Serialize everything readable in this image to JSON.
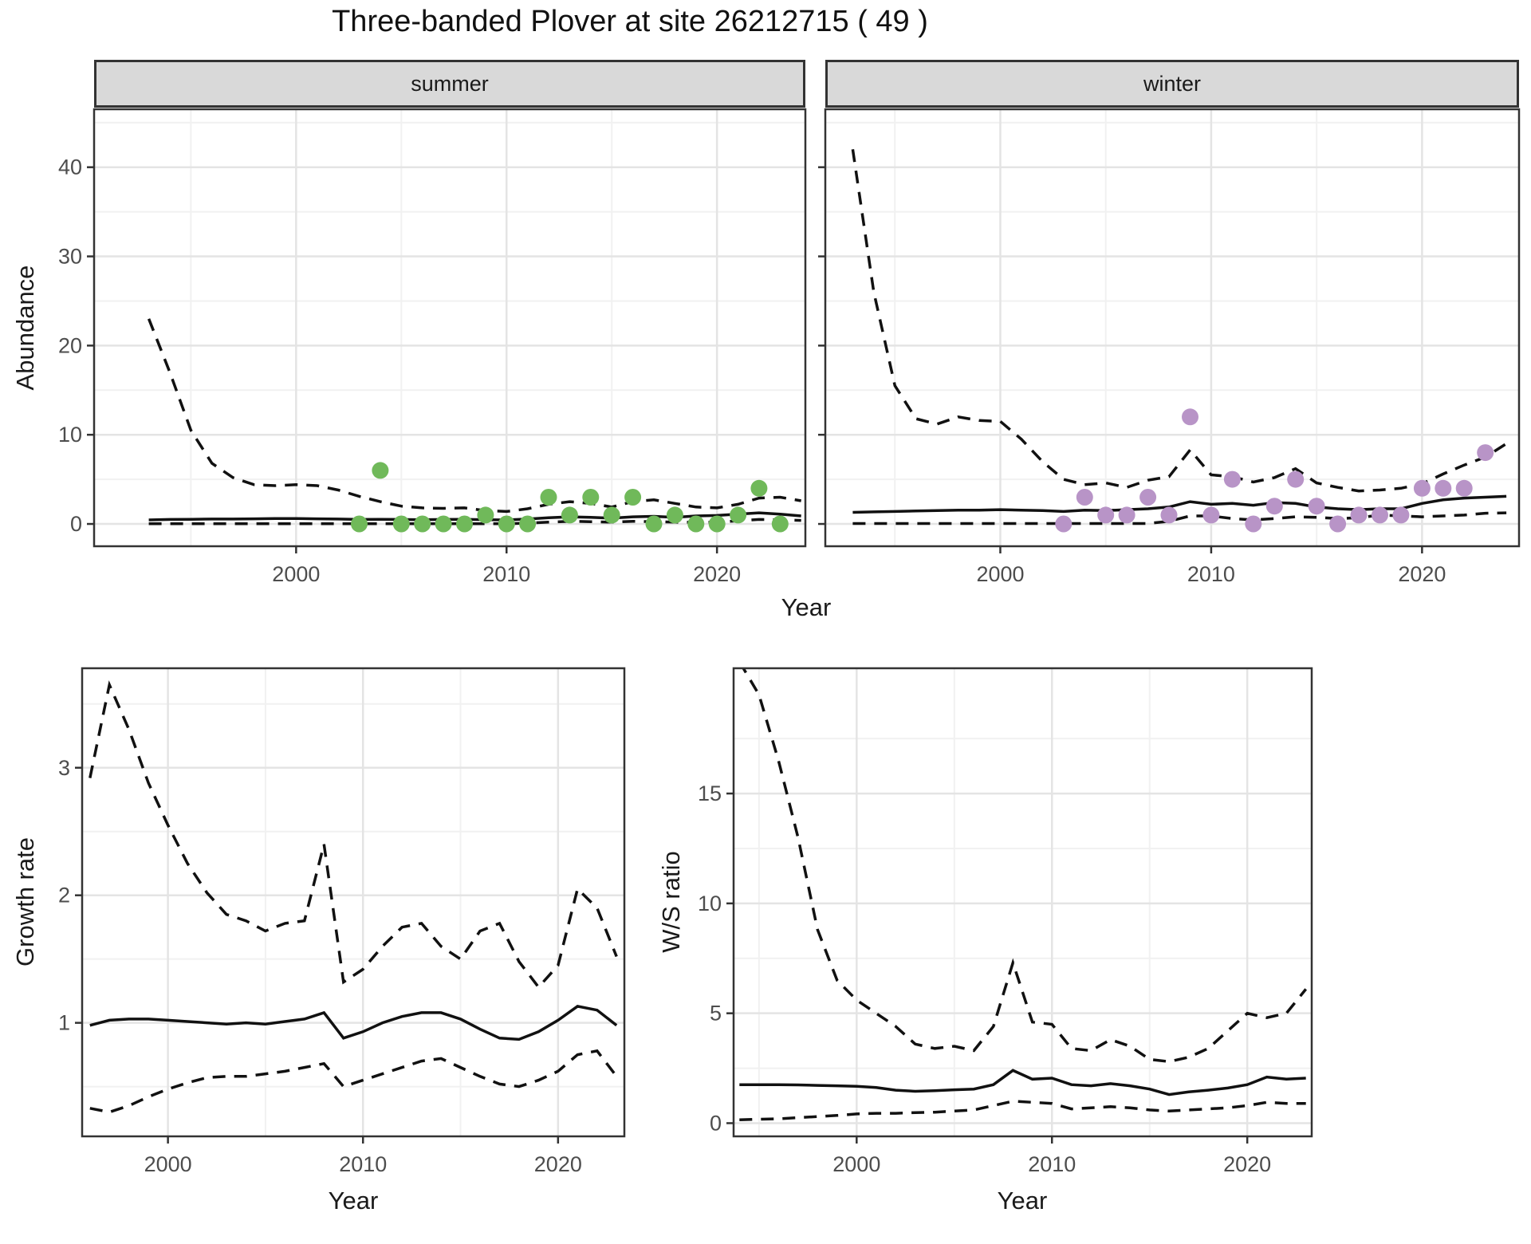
{
  "title": "Three-banded Plover at site 26212715 ( 49 )",
  "axis_titles": {
    "abundance": "Abundance",
    "year": "Year",
    "growth_rate": "Growth rate",
    "ws_ratio": "W/S ratio"
  },
  "colors": {
    "summer_points": "#70b95a",
    "winter_points": "#b894c7",
    "model_line": "#111111",
    "strip_background": "#d9d9d9",
    "panel_border": "#333333",
    "grid_major": "#e4e4e4",
    "grid_minor": "#f1f1f1",
    "tick_text": "#4d4d4d"
  },
  "chart_data": [
    {
      "id": "abundance-summer",
      "type": "line+scatter",
      "title_strip": "summer",
      "xlabel": "Year",
      "ylabel": "Abundance",
      "xlim": [
        1990.4,
        2024.2
      ],
      "ylim": [
        -2.5,
        46.5
      ],
      "x_ticks": [
        2000,
        2010,
        2020
      ],
      "x_minor": [
        1995,
        2005,
        2015
      ],
      "y_ticks": [
        0,
        10,
        20,
        30,
        40
      ],
      "y_minor": [
        5,
        15,
        25,
        35,
        45
      ],
      "series": [
        {
          "name": "upper-ci",
          "style": "dashed",
          "x": [
            1993,
            1994,
            1995,
            1996,
            1997,
            1998,
            1999,
            2000,
            2001,
            2002,
            2003,
            2004,
            2005,
            2006,
            2007,
            2008,
            2009,
            2010,
            2011,
            2012,
            2013,
            2014,
            2015,
            2016,
            2017,
            2018,
            2019,
            2020,
            2021,
            2022,
            2023,
            2024
          ],
          "y": [
            23,
            17,
            10.5,
            6.8,
            5.2,
            4.4,
            4.3,
            4.4,
            4.3,
            3.8,
            3.1,
            2.5,
            2.0,
            1.8,
            1.75,
            1.8,
            1.5,
            1.4,
            1.7,
            2.2,
            2.5,
            2.3,
            1.9,
            2.5,
            2.7,
            2.3,
            1.9,
            1.8,
            2.2,
            2.9,
            3.0,
            2.6
          ]
        },
        {
          "name": "mean",
          "style": "solid",
          "x": [
            1993,
            1994,
            1995,
            1996,
            1997,
            1998,
            1999,
            2000,
            2001,
            2002,
            2003,
            2004,
            2005,
            2006,
            2007,
            2008,
            2009,
            2010,
            2011,
            2012,
            2013,
            2014,
            2015,
            2016,
            2017,
            2018,
            2019,
            2020,
            2021,
            2022,
            2023,
            2024
          ],
          "y": [
            0.45,
            0.5,
            0.52,
            0.55,
            0.55,
            0.58,
            0.6,
            0.6,
            0.58,
            0.55,
            0.5,
            0.52,
            0.5,
            0.48,
            0.5,
            0.52,
            0.48,
            0.45,
            0.55,
            0.7,
            0.8,
            0.75,
            0.65,
            0.8,
            0.85,
            0.75,
            0.9,
            0.95,
            1.1,
            1.25,
            1.1,
            0.9
          ]
        },
        {
          "name": "lower-ci",
          "style": "dashed",
          "x": [
            1993,
            1994,
            1995,
            1996,
            1997,
            1998,
            1999,
            2000,
            2001,
            2002,
            2003,
            2004,
            2005,
            2006,
            2007,
            2008,
            2009,
            2010,
            2011,
            2012,
            2013,
            2014,
            2015,
            2016,
            2017,
            2018,
            2019,
            2020,
            2021,
            2022,
            2023,
            2024
          ],
          "y": [
            0.02,
            0.02,
            0.02,
            0.02,
            0.02,
            0.02,
            0.02,
            0.02,
            0.02,
            0.02,
            0.02,
            0.02,
            0.02,
            0.02,
            0.02,
            0.02,
            0.02,
            0.02,
            0.1,
            0.2,
            0.3,
            0.25,
            0.2,
            0.3,
            0.25,
            0.2,
            0.18,
            0.2,
            0.35,
            0.5,
            0.45,
            0.4
          ]
        }
      ],
      "points": {
        "name": "observed-summer-counts",
        "color": "#70b95a",
        "x": [
          2003,
          2004,
          2005,
          2006,
          2007,
          2008,
          2009,
          2010,
          2011,
          2012,
          2013,
          2014,
          2015,
          2016,
          2017,
          2018,
          2019,
          2020,
          2021,
          2022,
          2023
        ],
        "y": [
          0,
          6,
          0,
          0,
          0,
          0,
          1,
          0,
          0,
          3,
          1,
          3,
          1,
          3,
          0,
          1,
          0,
          0,
          1,
          4,
          0
        ]
      }
    },
    {
      "id": "abundance-winter",
      "type": "line+scatter",
      "title_strip": "winter",
      "xlabel": "Year",
      "ylabel": "Abundance",
      "xlim": [
        1991.7,
        2024.6
      ],
      "ylim": [
        -2.5,
        46.5
      ],
      "x_ticks": [
        2000,
        2010,
        2020
      ],
      "x_minor": [
        1995,
        2005,
        2015
      ],
      "y_ticks": [
        0,
        10,
        20,
        30,
        40
      ],
      "y_minor": [
        5,
        15,
        25,
        35,
        45
      ],
      "series": [
        {
          "name": "upper-ci",
          "style": "dashed",
          "x": [
            1993,
            1994,
            1995,
            1996,
            1997,
            1998,
            1999,
            2000,
            2001,
            2002,
            2003,
            2004,
            2005,
            2006,
            2007,
            2008,
            2009,
            2010,
            2011,
            2012,
            2013,
            2014,
            2015,
            2016,
            2017,
            2018,
            2019,
            2020,
            2021,
            2022,
            2023,
            2024
          ],
          "y": [
            42,
            26,
            15.5,
            11.8,
            11.2,
            12.0,
            11.6,
            11.5,
            9.5,
            7.0,
            5.0,
            4.4,
            4.6,
            4.1,
            4.9,
            5.3,
            8.3,
            5.5,
            5.3,
            4.7,
            5.2,
            6.2,
            4.6,
            4.1,
            3.7,
            3.8,
            4.0,
            4.5,
            5.6,
            6.6,
            7.5,
            9.0
          ]
        },
        {
          "name": "mean",
          "style": "solid",
          "x": [
            1993,
            1994,
            1995,
            1996,
            1997,
            1998,
            1999,
            2000,
            2001,
            2002,
            2003,
            2004,
            2005,
            2006,
            2007,
            2008,
            2009,
            2010,
            2011,
            2012,
            2013,
            2014,
            2015,
            2016,
            2017,
            2018,
            2019,
            2020,
            2021,
            2022,
            2023,
            2024
          ],
          "y": [
            1.3,
            1.35,
            1.4,
            1.45,
            1.5,
            1.55,
            1.55,
            1.6,
            1.55,
            1.5,
            1.4,
            1.55,
            1.5,
            1.6,
            1.7,
            1.9,
            2.5,
            2.2,
            2.3,
            2.1,
            2.4,
            2.3,
            1.9,
            1.7,
            1.6,
            1.7,
            1.7,
            2.3,
            2.7,
            2.9,
            3.0,
            3.1
          ]
        },
        {
          "name": "lower-ci",
          "style": "dashed",
          "x": [
            1993,
            1994,
            1995,
            1996,
            1997,
            1998,
            1999,
            2000,
            2001,
            2002,
            2003,
            2004,
            2005,
            2006,
            2007,
            2008,
            2009,
            2010,
            2011,
            2012,
            2013,
            2014,
            2015,
            2016,
            2017,
            2018,
            2019,
            2020,
            2021,
            2022,
            2023,
            2024
          ],
          "y": [
            0.05,
            0.05,
            0.05,
            0.05,
            0.05,
            0.05,
            0.05,
            0.05,
            0.05,
            0.05,
            0.05,
            0.05,
            0.05,
            0.05,
            0.05,
            0.3,
            0.9,
            0.9,
            0.6,
            0.45,
            0.6,
            0.8,
            0.75,
            0.6,
            0.7,
            1.0,
            0.9,
            0.8,
            0.9,
            1.0,
            1.2,
            1.25
          ]
        }
      ],
      "points": {
        "name": "observed-winter-counts",
        "color": "#b894c7",
        "x": [
          2003,
          2004,
          2005,
          2006,
          2007,
          2008,
          2009,
          2010,
          2011,
          2012,
          2013,
          2014,
          2015,
          2016,
          2017,
          2018,
          2019,
          2020,
          2021,
          2022,
          2023
        ],
        "y": [
          0,
          3,
          1,
          1,
          3,
          1,
          12,
          1,
          5,
          0,
          2,
          5,
          2,
          0,
          1,
          1,
          1,
          4,
          4,
          4,
          8
        ]
      }
    },
    {
      "id": "growth-rate",
      "type": "line",
      "title_strip": null,
      "xlabel": "Year",
      "ylabel": "Growth rate",
      "xlim": [
        1995.6,
        2023.4
      ],
      "ylim": [
        0.11,
        3.78
      ],
      "x_ticks": [
        2000,
        2010,
        2020
      ],
      "x_minor": [
        2005,
        2015
      ],
      "y_ticks": [
        1,
        2,
        3
      ],
      "y_minor": [
        0.5,
        1.5,
        2.5,
        3.5
      ],
      "series": [
        {
          "name": "upper-ci",
          "style": "dashed",
          "x": [
            1996,
            1997,
            1998,
            1999,
            2000,
            2001,
            2002,
            2003,
            2004,
            2005,
            2006,
            2007,
            2008,
            2009,
            2010,
            2011,
            2012,
            2013,
            2014,
            2015,
            2016,
            2017,
            2018,
            2019,
            2020,
            2021,
            2022,
            2023
          ],
          "y": [
            2.92,
            3.65,
            3.3,
            2.88,
            2.55,
            2.25,
            2.02,
            1.85,
            1.8,
            1.72,
            1.78,
            1.8,
            2.4,
            1.32,
            1.42,
            1.6,
            1.75,
            1.78,
            1.6,
            1.5,
            1.72,
            1.78,
            1.48,
            1.28,
            1.45,
            2.05,
            1.9,
            1.52
          ]
        },
        {
          "name": "mean",
          "style": "solid",
          "x": [
            1996,
            1997,
            1998,
            1999,
            2000,
            2001,
            2002,
            2003,
            2004,
            2005,
            2006,
            2007,
            2008,
            2009,
            2010,
            2011,
            2012,
            2013,
            2014,
            2015,
            2016,
            2017,
            2018,
            2019,
            2020,
            2021,
            2022,
            2023
          ],
          "y": [
            0.98,
            1.02,
            1.03,
            1.03,
            1.02,
            1.01,
            1.0,
            0.99,
            1.0,
            0.99,
            1.01,
            1.03,
            1.08,
            0.88,
            0.93,
            1.0,
            1.05,
            1.08,
            1.08,
            1.03,
            0.95,
            0.88,
            0.87,
            0.93,
            1.02,
            1.13,
            1.1,
            0.98
          ]
        },
        {
          "name": "lower-ci",
          "style": "dashed",
          "x": [
            1996,
            1997,
            1998,
            1999,
            2000,
            2001,
            2002,
            2003,
            2004,
            2005,
            2006,
            2007,
            2008,
            2009,
            2010,
            2011,
            2012,
            2013,
            2014,
            2015,
            2016,
            2017,
            2018,
            2019,
            2020,
            2021,
            2022,
            2023
          ],
          "y": [
            0.33,
            0.3,
            0.35,
            0.42,
            0.48,
            0.53,
            0.57,
            0.58,
            0.58,
            0.6,
            0.62,
            0.65,
            0.68,
            0.5,
            0.55,
            0.6,
            0.65,
            0.7,
            0.72,
            0.65,
            0.58,
            0.52,
            0.5,
            0.55,
            0.62,
            0.75,
            0.78,
            0.58
          ]
        }
      ],
      "points": null
    },
    {
      "id": "ws-ratio",
      "type": "line",
      "title_strip": null,
      "xlabel": "Year",
      "ylabel": "W/S ratio",
      "xlim": [
        1993.7,
        2023.3
      ],
      "ylim": [
        -0.6,
        20.7
      ],
      "x_ticks": [
        2000,
        2010,
        2020
      ],
      "x_minor": [
        1995,
        2005,
        2015
      ],
      "y_ticks": [
        0,
        5,
        10,
        15
      ],
      "y_minor": [
        2.5,
        7.5,
        12.5,
        17.5
      ],
      "series": [
        {
          "name": "upper-ci",
          "style": "dashed",
          "x": [
            1994,
            1995,
            1996,
            1997,
            1998,
            1999,
            2000,
            2001,
            2002,
            2003,
            2004,
            2005,
            2006,
            2007,
            2008,
            2009,
            2010,
            2011,
            2012,
            2013,
            2014,
            2015,
            2016,
            2017,
            2018,
            2019,
            2020,
            2021,
            2022,
            2023
          ],
          "y": [
            21,
            19.5,
            16.5,
            13.0,
            8.8,
            6.5,
            5.6,
            5.0,
            4.4,
            3.6,
            3.4,
            3.5,
            3.3,
            4.4,
            7.3,
            4.6,
            4.5,
            3.4,
            3.3,
            3.8,
            3.5,
            2.9,
            2.8,
            3.0,
            3.4,
            4.2,
            5.0,
            4.8,
            5.0,
            6.1
          ]
        },
        {
          "name": "mean",
          "style": "solid",
          "x": [
            1994,
            1995,
            1996,
            1997,
            1998,
            1999,
            2000,
            2001,
            2002,
            2003,
            2004,
            2005,
            2006,
            2007,
            2008,
            2009,
            2010,
            2011,
            2012,
            2013,
            2014,
            2015,
            2016,
            2017,
            2018,
            2019,
            2020,
            2021,
            2022,
            2023
          ],
          "y": [
            1.75,
            1.75,
            1.75,
            1.74,
            1.72,
            1.7,
            1.68,
            1.62,
            1.5,
            1.45,
            1.48,
            1.52,
            1.55,
            1.75,
            2.4,
            2.0,
            2.05,
            1.75,
            1.7,
            1.8,
            1.7,
            1.55,
            1.3,
            1.42,
            1.5,
            1.6,
            1.75,
            2.1,
            2.0,
            2.05
          ]
        },
        {
          "name": "lower-ci",
          "style": "dashed",
          "x": [
            1994,
            1995,
            1996,
            1997,
            1998,
            1999,
            2000,
            2001,
            2002,
            2003,
            2004,
            2005,
            2006,
            2007,
            2008,
            2009,
            2010,
            2011,
            2012,
            2013,
            2014,
            2015,
            2016,
            2017,
            2018,
            2019,
            2020,
            2021,
            2022,
            2023
          ],
          "y": [
            0.15,
            0.18,
            0.2,
            0.25,
            0.3,
            0.35,
            0.42,
            0.45,
            0.45,
            0.48,
            0.5,
            0.55,
            0.6,
            0.8,
            1.0,
            0.95,
            0.9,
            0.65,
            0.7,
            0.75,
            0.7,
            0.6,
            0.55,
            0.6,
            0.65,
            0.7,
            0.8,
            0.95,
            0.9,
            0.9
          ]
        }
      ],
      "points": null
    }
  ]
}
